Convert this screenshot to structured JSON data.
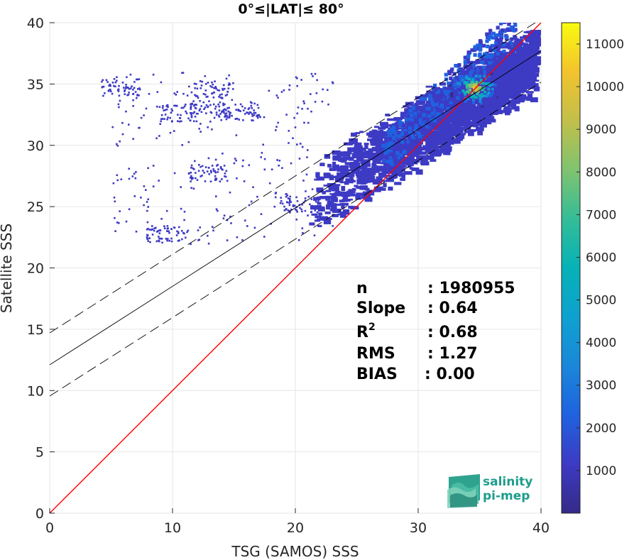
{
  "chart_data": {
    "type": "heatmap",
    "title": "0°≤|LAT|≤ 80°",
    "xlabel": "TSG (SAMOS) SSS",
    "ylabel": "Satellite SSS",
    "xlim": [
      0,
      40
    ],
    "ylim": [
      0,
      40
    ],
    "x_ticks": [
      "0",
      "10",
      "20",
      "30",
      "40"
    ],
    "y_ticks": [
      "0",
      "5",
      "10",
      "15",
      "20",
      "25",
      "30",
      "35",
      "40"
    ],
    "grid": true,
    "colorbar": {
      "range": [
        0,
        11500
      ],
      "ticks": [
        "1000",
        "2000",
        "3000",
        "4000",
        "5000",
        "6000",
        "7000",
        "8000",
        "9000",
        "10000",
        "11000"
      ],
      "colormap": "parula"
    },
    "lines": [
      {
        "kind": "one-to-one",
        "color": "#ff0000",
        "slope": 1.0,
        "intercept": 0
      },
      {
        "kind": "fit",
        "color": "#000000",
        "slope": 0.64,
        "intercept": 12.1,
        "dash": false
      },
      {
        "kind": "fit-upper",
        "color": "#000000",
        "slope": 0.64,
        "intercept": 14.7,
        "dash": true
      },
      {
        "kind": "fit-lower",
        "color": "#000000",
        "slope": 0.64,
        "intercept": 9.55,
        "dash": true
      }
    ],
    "density": {
      "main_cloud": {
        "x_range": [
          21,
          39.5
        ],
        "center_x": 34.5,
        "center_y": 34.8,
        "peak": 11200
      },
      "sparse_clusters": [
        {
          "x": 13.3,
          "y": 34.6
        },
        {
          "x": 13.0,
          "y": 33.0
        },
        {
          "x": 10.4,
          "y": 32.7
        },
        {
          "x": 15.5,
          "y": 32.8
        },
        {
          "x": 5.7,
          "y": 34.8
        },
        {
          "x": 12.8,
          "y": 27.8
        },
        {
          "x": 9.4,
          "y": 22.8
        },
        {
          "x": 20.3,
          "y": 25.2
        }
      ]
    },
    "stats": [
      {
        "label": "n",
        "value": ": 1980955"
      },
      {
        "label": "Slope",
        "value": ": 0.64"
      },
      {
        "label": "R",
        "sup": "2",
        "value": ": 0.68"
      },
      {
        "label": "RMS",
        "value": ": 1.27"
      },
      {
        "label": "BIAS",
        "value": ": 0.00"
      }
    ]
  },
  "logo": {
    "line1": "salinity",
    "line2": "pi-mep"
  }
}
